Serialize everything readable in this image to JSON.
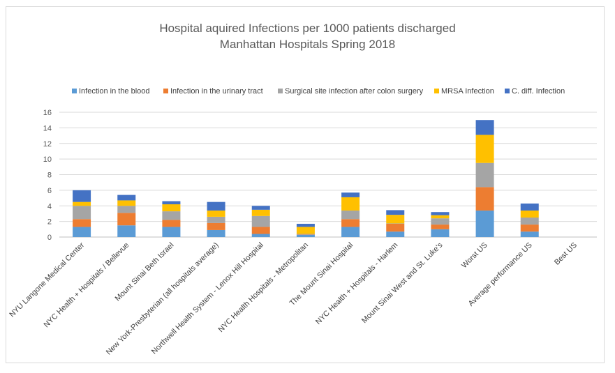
{
  "chart_data": {
    "type": "bar",
    "stacked": true,
    "title": "Hospital aquired Infections per 1000 patients discharged",
    "subtitle": "Manhattan Hospitals Spring 2018",
    "ylim": [
      0,
      16
    ],
    "yticks": [
      0,
      2,
      4,
      6,
      8,
      10,
      12,
      14,
      16
    ],
    "grid": true,
    "legend_position": "top",
    "categories": [
      "NYU Langone Medical Center",
      "NYC Health + Hospitals / Bellevue",
      "Mount Sinai Beth Israel",
      "New York-Presbyterian (all hospitals average)",
      "Northwell Health System - Lenox Hill Hospital",
      "NYC Health Hospitals - Metropolitan",
      "The Mount Sinai Hospital",
      "NYC Health + Hospitals - Harlem",
      "Mount Sinai West and  St. Luke's",
      "Worst US",
      "Average performance US",
      "Best US"
    ],
    "series": [
      {
        "name": "Infection in the blood",
        "color": "#5b9bd5",
        "values": [
          1.3,
          1.5,
          1.3,
          0.9,
          0.4,
          0.3,
          1.3,
          0.7,
          1.0,
          3.4,
          0.7,
          0
        ]
      },
      {
        "name": "Infection in the urinary tract",
        "color": "#ed7d31",
        "values": [
          1.0,
          1.6,
          0.9,
          0.9,
          0.9,
          0.05,
          1.0,
          1.0,
          0.6,
          3.0,
          0.9,
          0
        ]
      },
      {
        "name": "Surgical site infection after colon surgery",
        "color": "#a5a5a5",
        "values": [
          1.7,
          0.9,
          1.1,
          0.8,
          1.4,
          0.05,
          1.1,
          0.05,
          0.8,
          3.1,
          0.9,
          0
        ]
      },
      {
        "name": "MRSA Infection",
        "color": "#ffc000",
        "values": [
          0.5,
          0.7,
          0.9,
          0.8,
          0.8,
          0.9,
          1.7,
          1.1,
          0.4,
          3.6,
          0.9,
          0
        ]
      },
      {
        "name": "C. diff. Infection",
        "color": "#4472c4",
        "values": [
          1.5,
          0.7,
          0.4,
          1.1,
          0.5,
          0.4,
          0.6,
          0.6,
          0.4,
          1.9,
          0.9,
          0
        ]
      }
    ]
  }
}
